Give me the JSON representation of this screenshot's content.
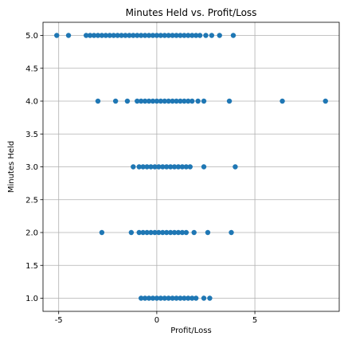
{
  "chart_data": {
    "type": "scatter",
    "title": "Minutes Held vs. Profit/Loss",
    "xlabel": "Profit/Loss",
    "ylabel": "Minutes Held",
    "xlim": [
      -5.8,
      9.3
    ],
    "ylim": [
      0.8,
      5.2
    ],
    "xticks": [
      -5,
      0,
      5
    ],
    "yticks": [
      1.0,
      1.5,
      2.0,
      2.5,
      3.0,
      3.5,
      4.0,
      4.5,
      5.0
    ],
    "ytick_labels": [
      "1.0",
      "1.5",
      "2.0",
      "2.5",
      "3.0",
      "3.5",
      "4.0",
      "4.5",
      "5.0"
    ],
    "xtick_labels": [
      "-5",
      "0",
      "5"
    ],
    "grid": true,
    "marker_color": "#1f77b4",
    "series": [
      {
        "values": [
          {
            "y": 5.0,
            "x": [
              -5.1,
              -4.5,
              -3.6,
              -3.4,
              -3.2,
              -3.0,
              -2.8,
              -2.6,
              -2.4,
              -2.2,
              -2.0,
              -1.8,
              -1.6,
              -1.4,
              -1.2,
              -1.0,
              -0.8,
              -0.6,
              -0.4,
              -0.2,
              0.0,
              0.2,
              0.4,
              0.6,
              0.8,
              1.0,
              1.2,
              1.4,
              1.6,
              1.8,
              2.0,
              2.2,
              2.5,
              2.8,
              3.2,
              3.9
            ]
          },
          {
            "y": 4.0,
            "x": [
              -3.0,
              -2.1,
              -1.5,
              -1.0,
              -0.8,
              -0.6,
              -0.4,
              -0.2,
              0.0,
              0.2,
              0.4,
              0.6,
              0.8,
              1.0,
              1.2,
              1.4,
              1.6,
              1.8,
              2.1,
              2.4,
              3.7,
              6.4,
              8.6
            ]
          },
          {
            "y": 3.0,
            "x": [
              -1.2,
              -0.9,
              -0.7,
              -0.5,
              -0.3,
              -0.1,
              0.1,
              0.3,
              0.5,
              0.7,
              0.9,
              1.1,
              1.3,
              1.5,
              1.7,
              2.4,
              4.0
            ]
          },
          {
            "y": 2.0,
            "x": [
              -2.8,
              -1.3,
              -0.9,
              -0.7,
              -0.5,
              -0.3,
              -0.1,
              0.1,
              0.3,
              0.5,
              0.7,
              0.9,
              1.1,
              1.3,
              1.5,
              1.9,
              2.6,
              3.8
            ]
          },
          {
            "y": 1.0,
            "x": [
              -0.8,
              -0.6,
              -0.4,
              -0.2,
              0.0,
              0.2,
              0.4,
              0.6,
              0.8,
              1.0,
              1.2,
              1.4,
              1.6,
              1.8,
              2.0,
              2.4,
              2.7
            ]
          }
        ]
      }
    ]
  }
}
